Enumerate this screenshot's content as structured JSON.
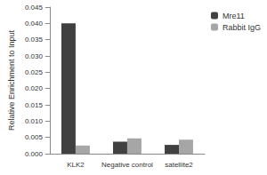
{
  "chart_data": {
    "type": "bar",
    "y_label": "Relative Enrichment to Input",
    "categories": [
      "KLK2",
      "Negative control",
      "satellite2"
    ],
    "series": [
      {
        "name": "Mre11",
        "color": "#404040",
        "values": [
          0.04,
          0.0037,
          0.0027
        ]
      },
      {
        "name": "Rabbit IgG",
        "color": "#a6a6a6",
        "values": [
          0.0025,
          0.0047,
          0.0043
        ]
      }
    ],
    "ylim": [
      0,
      0.045
    ],
    "yticks": [
      {
        "value": 0,
        "label": "0.000"
      },
      {
        "value": 0.005,
        "label": "0.005"
      },
      {
        "value": 0.01,
        "label": "0.010"
      },
      {
        "value": 0.015,
        "label": "0.015"
      },
      {
        "value": 0.02,
        "label": "0.020"
      },
      {
        "value": 0.025,
        "label": "0.025"
      },
      {
        "value": 0.03,
        "label": "0.030"
      },
      {
        "value": 0.035,
        "label": "0.035"
      },
      {
        "value": 0.04,
        "label": "0.040"
      },
      {
        "value": 0.045,
        "label": "0.045"
      }
    ],
    "grid": false,
    "legend": "top-right"
  }
}
